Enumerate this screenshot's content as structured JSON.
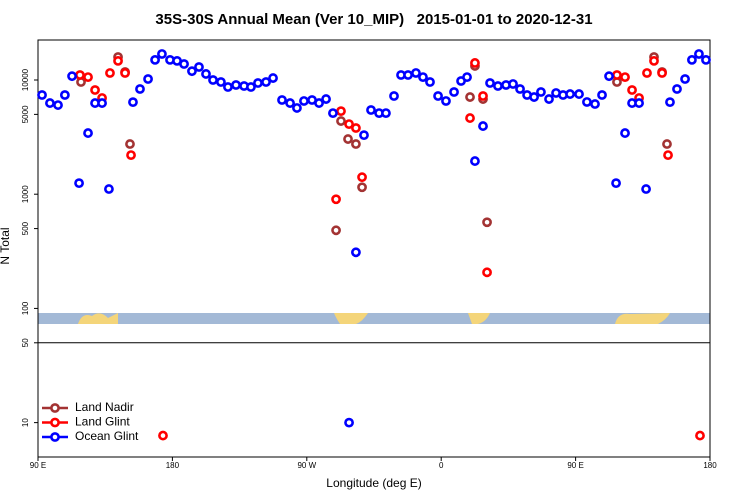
{
  "chart_data": {
    "type": "scatter",
    "title": "35S-30S Annual Mean (Ver 10_MIP)   2015-01-01 to 2020-12-31",
    "x_label": "Longitude (deg E)",
    "y_label": "N Total",
    "log_y": true,
    "legend": "lower left",
    "xlim": [
      90,
      540
    ],
    "xticks": [
      {
        "value": 90,
        "label": "90 E"
      },
      180,
      {
        "value": 270,
        "label": "90 W"
      },
      {
        "value": 360,
        "label": "0"
      },
      {
        "value": 450,
        "label": "90 E"
      },
      {
        "value": 540,
        "label": "180"
      }
    ],
    "ylim": [
      5,
      22400
    ],
    "yticks": [
      10,
      50,
      100,
      500,
      1000,
      5000,
      10000
    ],
    "series": [
      {
        "name": "Land Nadir",
        "color": "#a33333",
        "x": [
          118.8,
          143.6,
          148.3,
          151.6,
          289.6,
          292.9,
          297.6,
          302.9,
          307,
          379.3,
          382.6,
          388,
          390.7,
          477.7,
          502.5,
          507.9,
          511.2
        ],
        "values": [
          9600,
          15900,
          11750,
          2750,
          483,
          4370,
          3040,
          2750,
          1150,
          7090,
          13280,
          6810,
          568,
          9600,
          15900,
          11750,
          2750
        ]
      },
      {
        "name": "Land Glint",
        "color": "#ff0000",
        "x": [
          118.1,
          123.5,
          128.2,
          132.9,
          138.2,
          143.6,
          148.3,
          152.3,
          289.6,
          292.9,
          298.3,
          302.9,
          307,
          379.3,
          382.6,
          388,
          390.7,
          477.7,
          483.1,
          487.8,
          492.5,
          497.8,
          502.5,
          507.9,
          511.9,
          173.7,
          533.3
        ],
        "values": [
          11060,
          10600,
          8170,
          6960,
          11520,
          14700,
          11520,
          2200,
          903,
          5340,
          4110,
          3800,
          1410,
          4640,
          14100,
          7240,
          207,
          11060,
          10600,
          8170,
          6960,
          11520,
          14700,
          11520,
          2200,
          7.7,
          7.7
        ]
      },
      {
        "name": "Ocean Glint",
        "color": "#0000ff",
        "x": [
          92.7,
          98,
          103.4,
          108,
          112.8,
          117.5,
          123.5,
          128.2,
          132.9,
          137.5,
          153.6,
          158.3,
          163.7,
          168.4,
          173,
          178.4,
          183.1,
          187.8,
          193.1,
          197.8,
          202.5,
          207.2,
          212.5,
          217.2,
          222.6,
          228,
          232.6,
          237.3,
          242.7,
          247.4,
          253.4,
          258.8,
          263.4,
          268.1,
          273.5,
          278.2,
          282.9,
          287.5,
          302.9,
          308.3,
          313,
          318.4,
          323,
          328.4,
          333.1,
          337.8,
          343.1,
          347.8,
          352.5,
          357.9,
          363.2,
          368.6,
          373.3,
          377.3,
          382.6,
          388,
          392.7,
          398,
          403.4,
          408.1,
          412.8,
          417.5,
          422.2,
          426.8,
          432.2,
          436.9,
          441.6,
          446.3,
          452.3,
          457.6,
          463,
          467.7,
          472.4,
          477.1,
          483.1,
          487.8,
          492.5,
          497.2,
          513.2,
          517.9,
          523.3,
          527.9,
          532.6,
          537.3,
          298.3
        ],
        "values": [
          7390,
          6280,
          6030,
          7390,
          10800,
          1250,
          3430,
          6280,
          6280,
          1110,
          6400,
          8340,
          10200,
          15000,
          16900,
          15000,
          14700,
          13800,
          11950,
          13000,
          11300,
          10000,
          9600,
          8680,
          9040,
          8860,
          8680,
          9410,
          9600,
          10400,
          6680,
          6280,
          5690,
          6550,
          6680,
          6280,
          6810,
          5130,
          310,
          3290,
          5460,
          5130,
          5130,
          7240,
          11060,
          11060,
          11520,
          10600,
          9600,
          7240,
          6550,
          7850,
          9800,
          10600,
          1950,
          3950,
          9410,
          8860,
          9040,
          9230,
          8340,
          7390,
          7090,
          7850,
          6810,
          7700,
          7390,
          7530,
          7530,
          6420,
          6160,
          7390,
          10800,
          1250,
          3430,
          6280,
          6280,
          1110,
          6400,
          8340,
          10200,
          15000,
          16900,
          15000,
          10
        ]
      }
    ]
  }
}
